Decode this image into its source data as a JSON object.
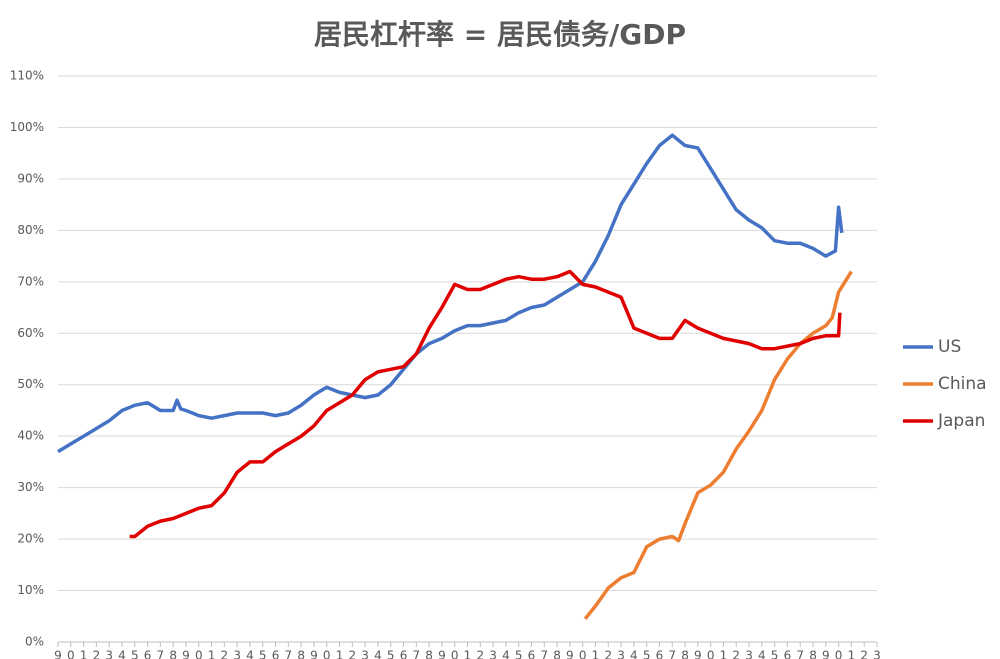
{
  "chart_data": {
    "type": "line",
    "title": "居民杠杆率 = 居民债务/GDP",
    "xlim": [
      1959,
      2023
    ],
    "xticks": [
      {
        "value": 1959,
        "label": "9"
      },
      {
        "value": 1960,
        "label": "0"
      },
      {
        "value": 1961,
        "label": "1"
      },
      {
        "value": 1962,
        "label": "2"
      },
      {
        "value": 1963,
        "label": "3"
      },
      {
        "value": 1964,
        "label": "4"
      },
      {
        "value": 1965,
        "label": "5"
      },
      {
        "value": 1966,
        "label": "6"
      },
      {
        "value": 1967,
        "label": "7"
      },
      {
        "value": 1968,
        "label": "8"
      },
      {
        "value": 1969,
        "label": "9"
      },
      {
        "value": 1970,
        "label": "0"
      },
      {
        "value": 1971,
        "label": "1"
      },
      {
        "value": 1972,
        "label": "2"
      },
      {
        "value": 1973,
        "label": "3"
      },
      {
        "value": 1974,
        "label": "4"
      },
      {
        "value": 1975,
        "label": "5"
      },
      {
        "value": 1976,
        "label": "6"
      },
      {
        "value": 1977,
        "label": "7"
      },
      {
        "value": 1978,
        "label": "8"
      },
      {
        "value": 1979,
        "label": "9"
      },
      {
        "value": 1980,
        "label": "0"
      },
      {
        "value": 1981,
        "label": "1"
      },
      {
        "value": 1982,
        "label": "2"
      },
      {
        "value": 1983,
        "label": "3"
      },
      {
        "value": 1984,
        "label": "4"
      },
      {
        "value": 1985,
        "label": "5"
      },
      {
        "value": 1986,
        "label": "6"
      },
      {
        "value": 1987,
        "label": "7"
      },
      {
        "value": 1988,
        "label": "8"
      },
      {
        "value": 1989,
        "label": "9"
      },
      {
        "value": 1990,
        "label": "0"
      },
      {
        "value": 1991,
        "label": "1"
      },
      {
        "value": 1992,
        "label": "2"
      },
      {
        "value": 1993,
        "label": "3"
      },
      {
        "value": 1994,
        "label": "4"
      },
      {
        "value": 1995,
        "label": "5"
      },
      {
        "value": 1996,
        "label": "6"
      },
      {
        "value": 1997,
        "label": "7"
      },
      {
        "value": 1998,
        "label": "8"
      },
      {
        "value": 1999,
        "label": "9"
      },
      {
        "value": 2000,
        "label": "0"
      },
      {
        "value": 2001,
        "label": "1"
      },
      {
        "value": 2002,
        "label": "2"
      },
      {
        "value": 2003,
        "label": "3"
      },
      {
        "value": 2004,
        "label": "4"
      },
      {
        "value": 2005,
        "label": "5"
      },
      {
        "value": 2006,
        "label": "6"
      },
      {
        "value": 2007,
        "label": "7"
      },
      {
        "value": 2008,
        "label": "8"
      },
      {
        "value": 2009,
        "label": "9"
      },
      {
        "value": 2010,
        "label": "0"
      },
      {
        "value": 2011,
        "label": "1"
      },
      {
        "value": 2012,
        "label": "2"
      },
      {
        "value": 2013,
        "label": "3"
      },
      {
        "value": 2014,
        "label": "4"
      },
      {
        "value": 2015,
        "label": "5"
      },
      {
        "value": 2016,
        "label": "6"
      },
      {
        "value": 2017,
        "label": "7"
      },
      {
        "value": 2018,
        "label": "8"
      },
      {
        "value": 2019,
        "label": "9"
      },
      {
        "value": 2020,
        "label": "0"
      },
      {
        "value": 2021,
        "label": "1"
      },
      {
        "value": 2022,
        "label": "2"
      },
      {
        "value": 2023,
        "label": "3"
      }
    ],
    "ylim": [
      0,
      110
    ],
    "yticks": [
      {
        "value": 0,
        "label": "0%"
      },
      {
        "value": 10,
        "label": "10%"
      },
      {
        "value": 20,
        "label": "20%"
      },
      {
        "value": 30,
        "label": "30%"
      },
      {
        "value": 40,
        "label": "40%"
      },
      {
        "value": 50,
        "label": "50%"
      },
      {
        "value": 60,
        "label": "60%"
      },
      {
        "value": 70,
        "label": "70%"
      },
      {
        "value": 80,
        "label": "80%"
      },
      {
        "value": 90,
        "label": "90%"
      },
      {
        "value": 100,
        "label": "100%"
      },
      {
        "value": 110,
        "label": "110%"
      }
    ],
    "grid": true,
    "legend": "right",
    "series": [
      {
        "name": "US",
        "color": "#4472c4",
        "x": [
          1959,
          1960,
          1961,
          1962,
          1963,
          1964,
          1965,
          1966,
          1967,
          1968,
          1968.3,
          1968.6,
          1969,
          1970,
          1971,
          1972,
          1973,
          1974,
          1975,
          1976,
          1977,
          1978,
          1979,
          1980,
          1981,
          1982,
          1983,
          1984,
          1985,
          1986,
          1987,
          1988,
          1989,
          1990,
          1991,
          1992,
          1993,
          1994,
          1995,
          1996,
          1997,
          1998,
          1999,
          2000,
          2001,
          2002,
          2003,
          2004,
          2005,
          2006,
          2007,
          2008,
          2009,
          2010,
          2011,
          2012,
          2013,
          2014,
          2015,
          2016,
          2017,
          2018,
          2019,
          2019.75,
          2020,
          2020.25
        ],
        "values": [
          37,
          38.5,
          40,
          41.5,
          43,
          45,
          46,
          46.5,
          45,
          45,
          47,
          45.3,
          45,
          44,
          43.5,
          44,
          44.5,
          44.5,
          44.5,
          44,
          44.5,
          46,
          48,
          49.5,
          48.5,
          48,
          47.5,
          48,
          50,
          53,
          56,
          58,
          59,
          60.5,
          61.5,
          61.5,
          62,
          62.5,
          64,
          65,
          65.5,
          67,
          68.5,
          70,
          74,
          79,
          85,
          89,
          93,
          96.5,
          98.5,
          96.5,
          96,
          92,
          88,
          84,
          82,
          80.5,
          78,
          77.5,
          77.5,
          76.5,
          75,
          76,
          84.5,
          79.5
        ]
      },
      {
        "name": "China",
        "color": "#ed7d31",
        "x": [
          2000.2,
          2001,
          2002,
          2003,
          2004,
          2005,
          2006,
          2007,
          2007.5,
          2008,
          2009,
          2010,
          2011,
          2012,
          2013,
          2014,
          2015,
          2016,
          2017,
          2018,
          2019,
          2019.5,
          2020,
          2020.5,
          2021
        ],
        "values": [
          4.5,
          7,
          10.5,
          12.5,
          13.5,
          18.5,
          20,
          20.5,
          19.7,
          23,
          29,
          30.5,
          33,
          37.5,
          41,
          45,
          51,
          55,
          58,
          60,
          61.5,
          63,
          68,
          70,
          72
        ]
      },
      {
        "name": "Japan",
        "color": "#e00000",
        "x": [
          1964.6,
          1965,
          1966,
          1967,
          1968,
          1969,
          1970,
          1971,
          1972,
          1973,
          1974,
          1975,
          1976,
          1977,
          1978,
          1979,
          1980,
          1981,
          1982,
          1983,
          1984,
          1985,
          1986,
          1987,
          1988,
          1989,
          1990,
          1991,
          1992,
          1993,
          1994,
          1995,
          1996,
          1997,
          1998,
          1999,
          2000,
          2001,
          2002,
          2003,
          2004,
          2005,
          2006,
          2007,
          2008,
          2009,
          2010,
          2011,
          2012,
          2013,
          2014,
          2015,
          2016,
          2017,
          2018,
          2019,
          2020,
          2020.1
        ],
        "values": [
          20.5,
          20.5,
          22.5,
          23.5,
          24,
          25,
          26,
          26.5,
          29,
          33,
          35,
          35,
          37,
          38.5,
          40,
          42,
          45,
          46.5,
          48,
          51,
          52.5,
          53,
          53.5,
          56,
          61,
          65,
          69.5,
          68.5,
          68.5,
          69.5,
          70.5,
          71,
          70.5,
          70.5,
          71,
          72,
          69.5,
          69,
          68,
          67,
          61,
          60,
          59,
          59,
          62.5,
          61,
          60,
          59,
          58.5,
          58,
          57,
          57,
          57.5,
          58,
          59,
          59.5,
          59.5,
          64
        ]
      }
    ]
  }
}
